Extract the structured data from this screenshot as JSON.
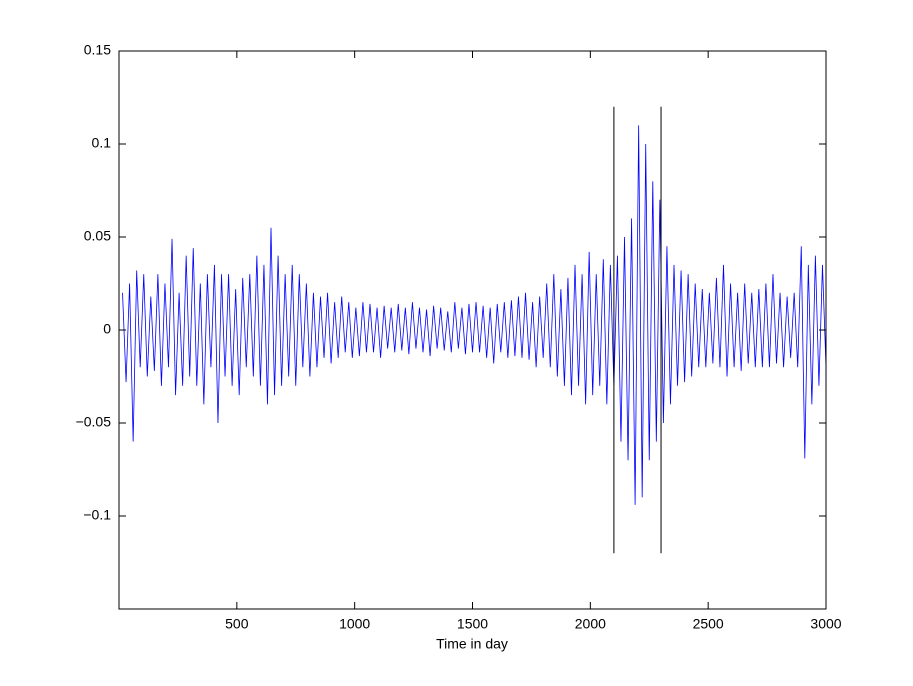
{
  "chart_data": {
    "type": "line",
    "xlabel": "Time in day",
    "xlim": [
      0,
      3000
    ],
    "xticks": [
      500,
      1000,
      1500,
      2000,
      2500,
      3000
    ],
    "ylim": [
      -0.15,
      0.15
    ],
    "yticks": [
      {
        "value": -0.1,
        "label": "−0.1"
      },
      {
        "value": -0.05,
        "label": "−0.05"
      },
      0,
      0.05,
      0.1,
      0.15
    ],
    "reference_lines": [
      {
        "x": 2100,
        "ymin": -0.12,
        "ymax": 0.12,
        "color": "#000000"
      },
      {
        "x": 2300,
        "ymin": -0.12,
        "ymax": 0.12,
        "color": "#000000"
      }
    ],
    "series": [
      {
        "color": "#0000ff",
        "x": [
          15,
          30,
          45,
          60,
          75,
          90,
          105,
          120,
          135,
          150,
          165,
          180,
          195,
          210,
          225,
          240,
          255,
          270,
          285,
          300,
          315,
          330,
          345,
          360,
          375,
          390,
          405,
          420,
          435,
          450,
          465,
          480,
          495,
          510,
          525,
          540,
          555,
          570,
          585,
          600,
          615,
          630,
          645,
          660,
          675,
          690,
          705,
          720,
          735,
          750,
          765,
          780,
          795,
          810,
          825,
          840,
          855,
          870,
          885,
          900,
          915,
          930,
          945,
          960,
          975,
          990,
          1005,
          1020,
          1035,
          1050,
          1065,
          1080,
          1095,
          1110,
          1125,
          1140,
          1155,
          1170,
          1185,
          1200,
          1215,
          1230,
          1245,
          1260,
          1275,
          1290,
          1305,
          1320,
          1335,
          1350,
          1365,
          1380,
          1395,
          1410,
          1425,
          1440,
          1455,
          1470,
          1485,
          1500,
          1515,
          1530,
          1545,
          1560,
          1575,
          1590,
          1605,
          1620,
          1635,
          1650,
          1665,
          1680,
          1695,
          1710,
          1725,
          1740,
          1755,
          1770,
          1785,
          1800,
          1815,
          1830,
          1845,
          1860,
          1875,
          1890,
          1905,
          1920,
          1935,
          1950,
          1965,
          1980,
          1995,
          2010,
          2025,
          2040,
          2055,
          2070,
          2085,
          2100,
          2115,
          2130,
          2145,
          2160,
          2175,
          2190,
          2205,
          2220,
          2235,
          2250,
          2265,
          2280,
          2295,
          2310,
          2325,
          2340,
          2355,
          2370,
          2385,
          2400,
          2415,
          2430,
          2445,
          2460,
          2475,
          2490,
          2505,
          2520,
          2535,
          2550,
          2565,
          2580,
          2595,
          2610,
          2625,
          2640,
          2655,
          2670,
          2685,
          2700,
          2715,
          2730,
          2745,
          2760,
          2775,
          2790,
          2805,
          2820,
          2835,
          2850,
          2865,
          2880,
          2895,
          2910,
          2925,
          2940,
          2955,
          2970,
          2985,
          3000
        ],
        "values": [
          0.02,
          -0.028,
          0.025,
          -0.06,
          0.032,
          -0.02,
          0.03,
          -0.025,
          0.018,
          -0.022,
          0.03,
          -0.03,
          0.025,
          -0.02,
          0.049,
          -0.035,
          0.02,
          -0.03,
          0.04,
          -0.025,
          0.044,
          -0.03,
          0.025,
          -0.04,
          0.03,
          -0.02,
          0.035,
          -0.05,
          0.03,
          -0.025,
          0.03,
          -0.03,
          0.022,
          -0.035,
          0.028,
          -0.02,
          0.03,
          -0.025,
          0.04,
          -0.03,
          0.035,
          -0.04,
          0.055,
          -0.035,
          0.04,
          -0.03,
          0.03,
          -0.025,
          0.035,
          -0.03,
          0.03,
          -0.02,
          0.025,
          -0.025,
          0.02,
          -0.02,
          0.018,
          -0.015,
          0.02,
          -0.018,
          0.015,
          -0.015,
          0.018,
          -0.012,
          0.015,
          -0.015,
          0.012,
          -0.014,
          0.015,
          -0.012,
          0.014,
          -0.012,
          0.012,
          -0.015,
          0.013,
          -0.01,
          0.012,
          -0.012,
          0.014,
          -0.011,
          0.012,
          -0.013,
          0.015,
          -0.01,
          0.012,
          -0.012,
          0.011,
          -0.014,
          0.013,
          -0.01,
          0.012,
          -0.011,
          0.01,
          -0.012,
          0.015,
          -0.01,
          0.012,
          -0.013,
          0.014,
          -0.012,
          0.015,
          -0.012,
          0.013,
          -0.015,
          0.012,
          -0.018,
          0.014,
          -0.012,
          0.015,
          -0.015,
          0.016,
          -0.014,
          0.018,
          -0.015,
          0.02,
          -0.016,
          0.015,
          -0.02,
          0.018,
          -0.015,
          0.025,
          -0.02,
          0.03,
          -0.025,
          0.022,
          -0.03,
          0.028,
          -0.035,
          0.035,
          -0.03,
          0.03,
          -0.04,
          0.042,
          -0.035,
          0.03,
          -0.03,
          0.038,
          -0.04,
          0.035,
          -0.03,
          0.04,
          -0.06,
          0.05,
          -0.07,
          0.06,
          -0.094,
          0.11,
          -0.09,
          0.1,
          -0.07,
          0.08,
          -0.06,
          0.07,
          -0.05,
          0.045,
          -0.04,
          0.035,
          -0.03,
          0.032,
          -0.028,
          0.03,
          -0.025,
          0.025,
          -0.02,
          0.022,
          -0.02,
          0.02,
          -0.018,
          0.028,
          -0.02,
          0.035,
          -0.025,
          0.025,
          -0.02,
          0.02,
          -0.022,
          0.025,
          -0.018,
          0.02,
          -0.02,
          0.022,
          -0.02,
          0.025,
          -0.02,
          0.03,
          -0.018,
          0.02,
          -0.02,
          0.018,
          -0.015,
          0.02,
          -0.02,
          0.045,
          -0.069,
          0.035,
          -0.04,
          0.04,
          -0.03,
          0.035,
          -0.02
        ]
      }
    ]
  }
}
